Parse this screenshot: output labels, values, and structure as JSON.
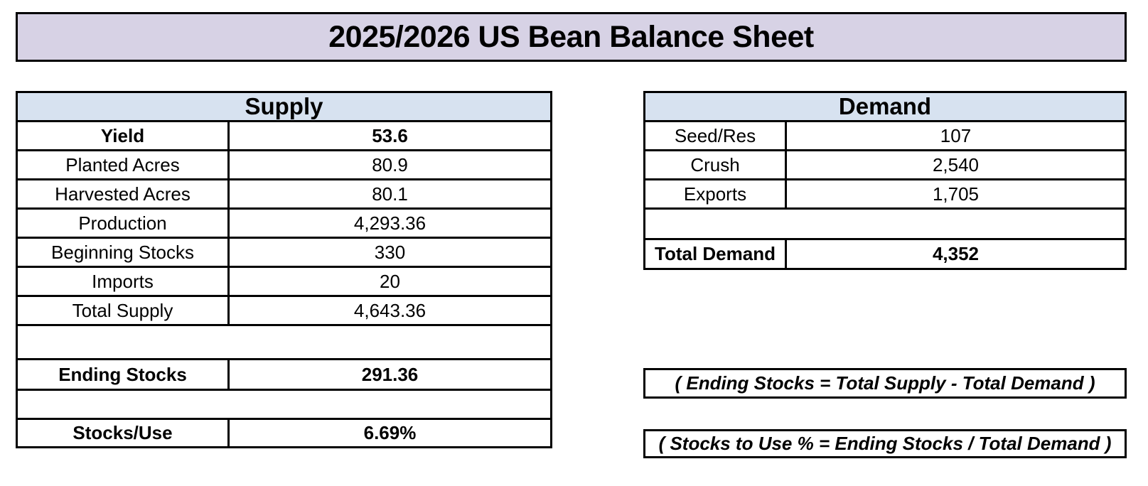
{
  "title": "2025/2026 US Bean Balance Sheet",
  "supply": {
    "header": "Supply",
    "rows": [
      {
        "label": "Yield",
        "value": "53.6"
      },
      {
        "label": "Planted Acres",
        "value": "80.9"
      },
      {
        "label": "Harvested Acres",
        "value": "80.1"
      },
      {
        "label": "Production",
        "value": "4,293.36"
      },
      {
        "label": "Beginning Stocks",
        "value": "330"
      },
      {
        "label": "Imports",
        "value": "20"
      },
      {
        "label": "Total Supply",
        "value": "4,643.36"
      },
      {
        "label": "Ending Stocks",
        "value": "291.36"
      },
      {
        "label": "Stocks/Use",
        "value": "6.69%"
      }
    ]
  },
  "demand": {
    "header": "Demand",
    "rows": [
      {
        "label": "Seed/Res",
        "value": "107"
      },
      {
        "label": "Crush",
        "value": "2,540"
      },
      {
        "label": "Exports",
        "value": "1,705"
      },
      {
        "label": "Total Demand",
        "value": "4,352"
      }
    ]
  },
  "notes": [
    {
      "text": "( Ending Stocks = Total Supply - Total Demand )"
    },
    {
      "text": "( Stocks to Use % = Ending Stocks / Total Demand )"
    }
  ],
  "colors": {
    "title_background": "#d7d2e5",
    "section_header_background": "#d7e2f0",
    "border": "#000000",
    "page_background": "#ffffff"
  }
}
